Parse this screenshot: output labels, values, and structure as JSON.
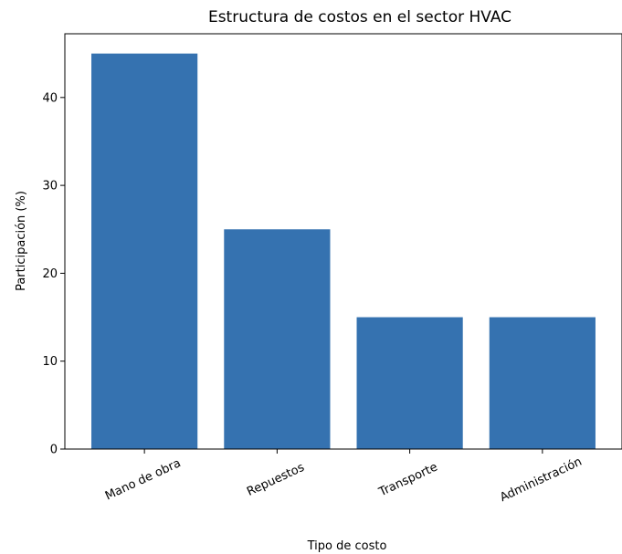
{
  "chart_data": {
    "type": "bar",
    "title": "Estructura de costos en el sector HVAC",
    "xlabel": "Tipo de costo",
    "ylabel": "Participación (%)",
    "categories": [
      "Mano de obra",
      "Repuestos",
      "Transporte",
      "Administración"
    ],
    "values": [
      45,
      25,
      15,
      15
    ],
    "ylim": [
      0,
      47.25
    ],
    "yticks": [
      0,
      10,
      20,
      30,
      40
    ],
    "bar_color": "#3572b0",
    "grid": false,
    "legend": "none",
    "xtick_rotation_deg": 25
  }
}
